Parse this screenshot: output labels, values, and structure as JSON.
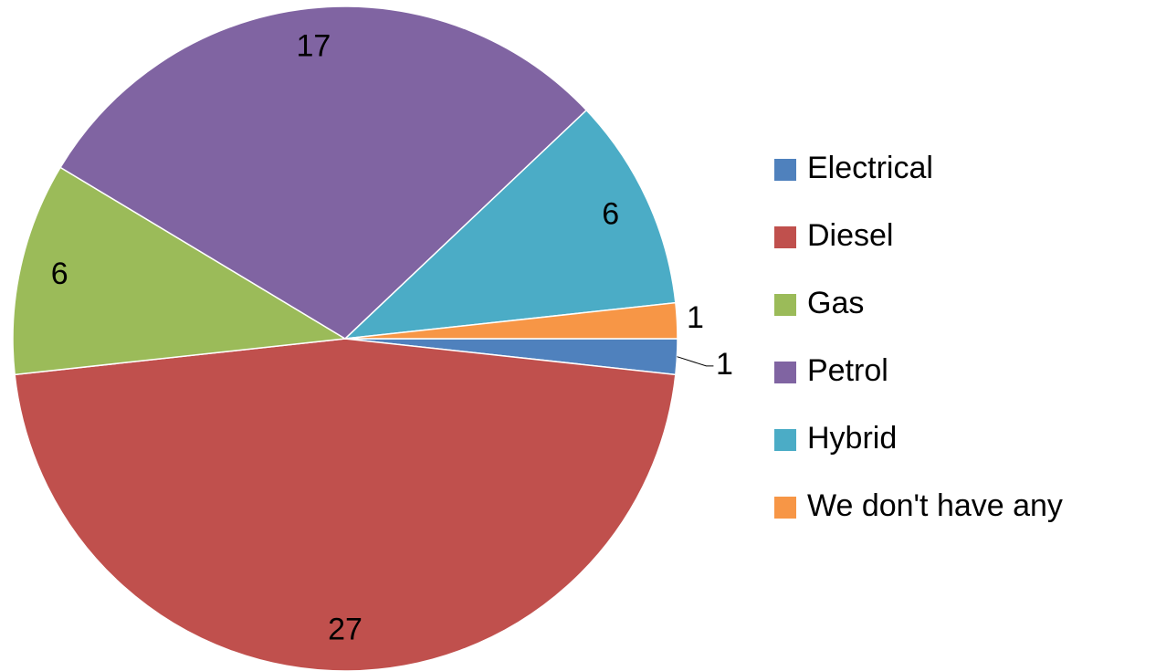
{
  "chart_data": {
    "type": "pie",
    "categories": [
      "Electrical",
      "Diesel",
      "Gas",
      "Petrol",
      "Hybrid",
      "We don't have any"
    ],
    "values": [
      1,
      27,
      6,
      17,
      6,
      1
    ],
    "colors": [
      "#4f81bd",
      "#c0504d",
      "#9bbb59",
      "#8064a2",
      "#4bacc6",
      "#f79646"
    ],
    "legend": "right"
  }
}
